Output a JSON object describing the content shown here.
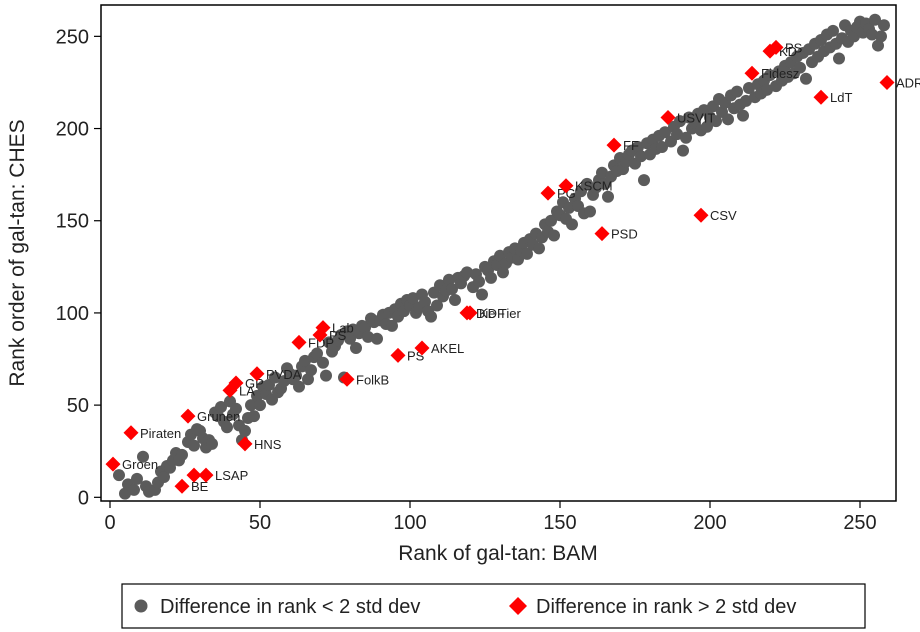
{
  "chart_data": {
    "type": "scatter",
    "xlabel": "Rank of gal-tan: BAM",
    "ylabel": "Rank order of gal-tan: CHES",
    "xlim": [
      -3,
      262
    ],
    "ylim": [
      -2,
      267
    ],
    "xticks": [
      0,
      50,
      100,
      150,
      200,
      250
    ],
    "yticks": [
      0,
      50,
      100,
      150,
      200,
      250
    ],
    "grid": false,
    "legend_position": "bottom",
    "series": [
      {
        "name": "Difference in rank < 2 std dev",
        "marker": "circle",
        "color": "#5b5b5b",
        "points": [
          [
            3,
            12
          ],
          [
            5,
            2
          ],
          [
            6,
            7
          ],
          [
            8,
            4
          ],
          [
            9,
            10
          ],
          [
            11,
            22
          ],
          [
            12,
            6
          ],
          [
            13,
            3
          ],
          [
            15,
            4
          ],
          [
            16,
            8
          ],
          [
            17,
            14
          ],
          [
            18,
            11
          ],
          [
            19,
            17
          ],
          [
            20,
            16
          ],
          [
            21,
            20
          ],
          [
            22,
            24
          ],
          [
            23,
            20
          ],
          [
            24,
            23
          ],
          [
            26,
            30
          ],
          [
            27,
            34
          ],
          [
            28,
            28
          ],
          [
            29,
            37
          ],
          [
            30,
            36
          ],
          [
            31,
            32
          ],
          [
            32,
            27
          ],
          [
            33,
            31
          ],
          [
            34,
            29
          ],
          [
            35,
            46
          ],
          [
            36,
            44
          ],
          [
            37,
            49
          ],
          [
            38,
            41
          ],
          [
            39,
            38
          ],
          [
            40,
            52
          ],
          [
            41,
            45
          ],
          [
            42,
            48
          ],
          [
            43,
            39
          ],
          [
            44,
            31
          ],
          [
            45,
            36
          ],
          [
            46,
            43
          ],
          [
            47,
            50
          ],
          [
            48,
            44
          ],
          [
            49,
            55
          ],
          [
            50,
            50
          ],
          [
            51,
            60
          ],
          [
            52,
            56
          ],
          [
            53,
            61
          ],
          [
            54,
            53
          ],
          [
            55,
            65
          ],
          [
            56,
            57
          ],
          [
            57,
            59
          ],
          [
            58,
            63
          ],
          [
            59,
            70
          ],
          [
            60,
            67
          ],
          [
            61,
            64
          ],
          [
            62,
            66
          ],
          [
            63,
            60
          ],
          [
            64,
            71
          ],
          [
            65,
            74
          ],
          [
            66,
            64
          ],
          [
            67,
            69
          ],
          [
            68,
            76
          ],
          [
            69,
            78
          ],
          [
            71,
            73
          ],
          [
            72,
            66
          ],
          [
            73,
            84
          ],
          [
            74,
            79
          ],
          [
            75,
            82
          ],
          [
            76,
            85
          ],
          [
            77,
            88
          ],
          [
            78,
            65
          ],
          [
            79,
            90
          ],
          [
            80,
            86
          ],
          [
            81,
            91
          ],
          [
            82,
            81
          ],
          [
            83,
            89
          ],
          [
            84,
            93
          ],
          [
            85,
            92
          ],
          [
            86,
            87
          ],
          [
            87,
            97
          ],
          [
            88,
            95
          ],
          [
            89,
            86
          ],
          [
            90,
            96
          ],
          [
            91,
            99
          ],
          [
            92,
            94
          ],
          [
            93,
            100
          ],
          [
            94,
            93
          ],
          [
            95,
            102
          ],
          [
            96,
            98
          ],
          [
            97,
            105
          ],
          [
            98,
            101
          ],
          [
            99,
            107
          ],
          [
            100,
            104
          ],
          [
            101,
            108
          ],
          [
            102,
            100
          ],
          [
            103,
            103
          ],
          [
            104,
            110
          ],
          [
            105,
            106
          ],
          [
            106,
            101
          ],
          [
            107,
            98
          ],
          [
            108,
            111
          ],
          [
            109,
            104
          ],
          [
            110,
            115
          ],
          [
            111,
            109
          ],
          [
            112,
            112
          ],
          [
            113,
            118
          ],
          [
            114,
            113
          ],
          [
            115,
            107
          ],
          [
            116,
            119
          ],
          [
            117,
            116
          ],
          [
            118,
            120
          ],
          [
            119,
            122
          ],
          [
            121,
            114
          ],
          [
            122,
            121
          ],
          [
            123,
            117
          ],
          [
            124,
            110
          ],
          [
            125,
            125
          ],
          [
            126,
            123
          ],
          [
            127,
            119
          ],
          [
            128,
            128
          ],
          [
            129,
            126
          ],
          [
            130,
            131
          ],
          [
            131,
            122
          ],
          [
            132,
            127
          ],
          [
            133,
            133
          ],
          [
            134,
            130
          ],
          [
            135,
            135
          ],
          [
            136,
            129
          ],
          [
            137,
            134
          ],
          [
            138,
            138
          ],
          [
            139,
            132
          ],
          [
            140,
            140
          ],
          [
            141,
            137
          ],
          [
            142,
            143
          ],
          [
            143,
            135
          ],
          [
            144,
            141
          ],
          [
            145,
            148
          ],
          [
            146,
            144
          ],
          [
            147,
            150
          ],
          [
            148,
            142
          ],
          [
            149,
            155
          ],
          [
            150,
            153
          ],
          [
            151,
            160
          ],
          [
            152,
            151
          ],
          [
            153,
            157
          ],
          [
            154,
            148
          ],
          [
            155,
            162
          ],
          [
            156,
            158
          ],
          [
            157,
            166
          ],
          [
            158,
            154
          ],
          [
            159,
            170
          ],
          [
            160,
            155
          ],
          [
            161,
            164
          ],
          [
            162,
            168
          ],
          [
            163,
            172
          ],
          [
            164,
            176
          ],
          [
            165,
            170
          ],
          [
            166,
            163
          ],
          [
            167,
            174
          ],
          [
            168,
            180
          ],
          [
            169,
            177
          ],
          [
            170,
            184
          ],
          [
            171,
            178
          ],
          [
            172,
            182
          ],
          [
            173,
            186
          ],
          [
            174,
            188
          ],
          [
            175,
            181
          ],
          [
            176,
            190
          ],
          [
            177,
            185
          ],
          [
            178,
            172
          ],
          [
            179,
            192
          ],
          [
            180,
            186
          ],
          [
            181,
            194
          ],
          [
            182,
            189
          ],
          [
            183,
            196
          ],
          [
            184,
            190
          ],
          [
            185,
            198
          ],
          [
            187,
            193
          ],
          [
            188,
            201
          ],
          [
            189,
            197
          ],
          [
            190,
            204
          ],
          [
            191,
            188
          ],
          [
            192,
            195
          ],
          [
            193,
            206
          ],
          [
            194,
            200
          ],
          [
            195,
            203
          ],
          [
            196,
            208
          ],
          [
            197,
            199
          ],
          [
            198,
            210
          ],
          [
            199,
            201
          ],
          [
            200,
            206
          ],
          [
            201,
            212
          ],
          [
            202,
            204
          ],
          [
            203,
            216
          ],
          [
            204,
            209
          ],
          [
            205,
            214
          ],
          [
            206,
            205
          ],
          [
            207,
            218
          ],
          [
            208,
            211
          ],
          [
            209,
            220
          ],
          [
            210,
            213
          ],
          [
            211,
            207
          ],
          [
            212,
            215
          ],
          [
            213,
            222
          ],
          [
            215,
            217
          ],
          [
            216,
            224
          ],
          [
            217,
            219
          ],
          [
            218,
            226
          ],
          [
            219,
            221
          ],
          [
            220,
            229
          ],
          [
            222,
            223
          ],
          [
            223,
            231
          ],
          [
            224,
            226
          ],
          [
            225,
            234
          ],
          [
            226,
            228
          ],
          [
            227,
            236
          ],
          [
            228,
            230
          ],
          [
            229,
            239
          ],
          [
            230,
            233
          ],
          [
            231,
            241
          ],
          [
            232,
            227
          ],
          [
            233,
            243
          ],
          [
            234,
            236
          ],
          [
            235,
            246
          ],
          [
            236,
            239
          ],
          [
            237,
            248
          ],
          [
            238,
            242
          ],
          [
            239,
            251
          ],
          [
            240,
            244
          ],
          [
            241,
            253
          ],
          [
            242,
            246
          ],
          [
            243,
            238
          ],
          [
            244,
            249
          ],
          [
            245,
            256
          ],
          [
            246,
            247
          ],
          [
            247,
            253
          ],
          [
            248,
            250
          ],
          [
            249,
            255
          ],
          [
            250,
            258
          ],
          [
            251,
            252
          ],
          [
            252,
            257
          ],
          [
            253,
            254
          ],
          [
            254,
            251
          ],
          [
            255,
            259
          ],
          [
            256,
            245
          ],
          [
            257,
            250
          ],
          [
            258,
            256
          ]
        ]
      },
      {
        "name": "Difference in rank > 2 std dev",
        "marker": "diamond",
        "color": "#ff0000",
        "points": [
          {
            "x": 1,
            "y": 18,
            "label": "Groen"
          },
          {
            "x": 7,
            "y": 35,
            "label": "Piraten"
          },
          {
            "x": 24,
            "y": 6,
            "label": "BE"
          },
          {
            "x": 26,
            "y": 44,
            "label": "Grunen"
          },
          {
            "x": 28,
            "y": 12,
            "label": ""
          },
          {
            "x": 32,
            "y": 12,
            "label": "LSAP"
          },
          {
            "x": 40,
            "y": 58,
            "label": "LA"
          },
          {
            "x": 42,
            "y": 62,
            "label": "GP"
          },
          {
            "x": 45,
            "y": 29,
            "label": "HNS"
          },
          {
            "x": 49,
            "y": 67,
            "label": "PVDA"
          },
          {
            "x": 63,
            "y": 84,
            "label": "FDP"
          },
          {
            "x": 70,
            "y": 88,
            "label": "PS"
          },
          {
            "x": 71,
            "y": 92,
            "label": "Lab"
          },
          {
            "x": 79,
            "y": 64,
            "label": "FolkB"
          },
          {
            "x": 96,
            "y": 77,
            "label": "PS"
          },
          {
            "x": 104,
            "y": 81,
            "label": "AKEL"
          },
          {
            "x": 119,
            "y": 100,
            "label": "Die Tier"
          },
          {
            "x": 120,
            "y": 100,
            "label": "KDF"
          },
          {
            "x": 146,
            "y": 165,
            "label": "PG"
          },
          {
            "x": 152,
            "y": 169,
            "label": "KSCM"
          },
          {
            "x": 164,
            "y": 143,
            "label": "PSD"
          },
          {
            "x": 168,
            "y": 191,
            "label": "FF"
          },
          {
            "x": 186,
            "y": 206,
            "label": "USVIT"
          },
          {
            "x": 197,
            "y": 153,
            "label": "CSV"
          },
          {
            "x": 214,
            "y": 230,
            "label": "Fidesz"
          },
          {
            "x": 220,
            "y": 242,
            "label": "KD"
          },
          {
            "x": 222,
            "y": 244,
            "label": "PS"
          },
          {
            "x": 237,
            "y": 217,
            "label": "LdT"
          },
          {
            "x": 259,
            "y": 225,
            "label": "ADR"
          }
        ]
      }
    ]
  }
}
